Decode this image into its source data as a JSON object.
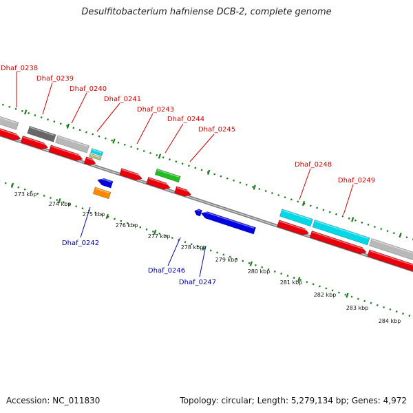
{
  "title": "Desulfitobacterium hafniense DCB-2, complete genome",
  "footer": {
    "accession": "Accession: NC_011830",
    "topology": "Topology: circular; Length: 5,279,134 bp; Genes: 4,972"
  },
  "kbp_labels": [
    "273 kbp",
    "274 kbp",
    "275 kbp",
    "276 kbp",
    "277 kbp",
    "278 kbp",
    "279 kbp",
    "280 kbp",
    "281 kbp",
    "282 kbp",
    "283 kbp",
    "284 kbp"
  ],
  "genes_plus": [
    "Dhaf_0238",
    "Dhaf_0239",
    "Dhaf_0240",
    "Dhaf_0241",
    "Dhaf_0243",
    "Dhaf_0244",
    "Dhaf_0245",
    "Dhaf_0248",
    "Dhaf_0249"
  ],
  "genes_minus": [
    "Dhaf_0242",
    "Dhaf_0246",
    "Dhaf_0247"
  ],
  "colors": {
    "plus_label": "#cc0000",
    "minus_label": "#0000aa",
    "cds": "#e8000a",
    "cds_minus": "#0000e0",
    "rna": "#00d8e8",
    "grey": "#b8b8b8",
    "dark_grey": "#666666",
    "green": "#22bb22",
    "orange": "#ff8800",
    "tick": "#1a7a1a",
    "backbone": "#808080"
  }
}
